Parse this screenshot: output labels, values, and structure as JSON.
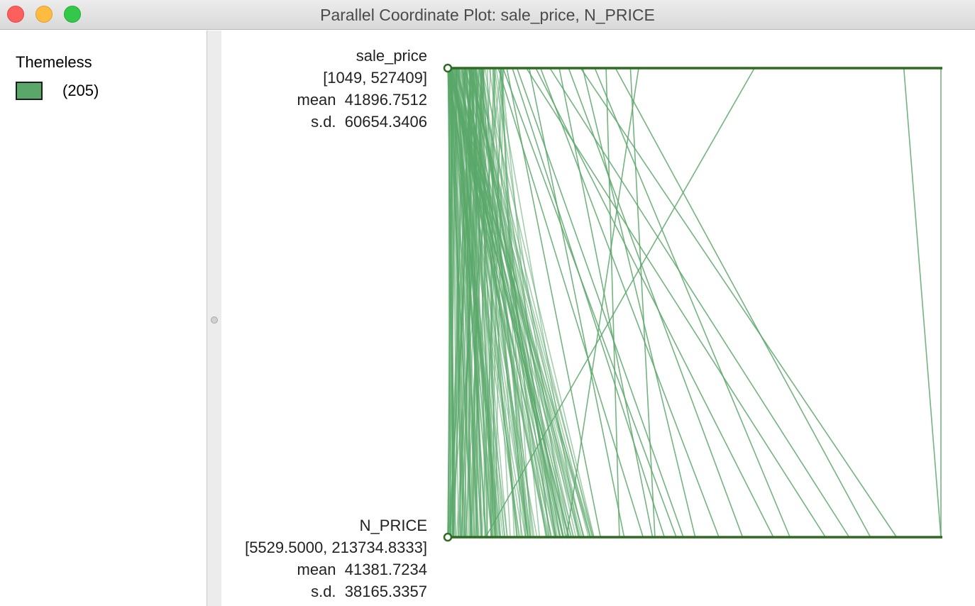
{
  "window": {
    "title": "Parallel Coordinate Plot: sale_price, N_PRICE"
  },
  "legend": {
    "title": "Themeless",
    "count": "(205)",
    "swatch_color": "#5aa76a"
  },
  "colors": {
    "line": "#5aa76a",
    "axis": "#2f6b22"
  },
  "axes": [
    {
      "name": "sale_price",
      "range": "[1049, 527409]",
      "mean": "mean  41896.7512",
      "sd": "s.d.  60654.3406"
    },
    {
      "name": "N_PRICE",
      "range": "[5529.5000, 213734.8333]",
      "mean": "mean  41381.7234",
      "sd": "s.d.  38165.3357"
    }
  ],
  "chart_data": {
    "type": "parallel_coordinates",
    "variables": [
      "sale_price",
      "N_PRICE"
    ],
    "observations": 205,
    "ranges": {
      "sale_price": [
        1049,
        527409
      ],
      "N_PRICE": [
        5529.5,
        213734.8333
      ]
    },
    "highlighted_lines": [
      {
        "sale_price": 527409,
        "N_PRICE": 213734.8333
      },
      {
        "sale_price": 487770,
        "N_PRICE": 213734.8333
      },
      {
        "sale_price": 328400,
        "N_PRICE": 21500
      },
      {
        "sale_price": 204800,
        "N_PRICE": 55700
      },
      {
        "sale_price": 180000,
        "N_PRICE": 184000
      },
      {
        "sale_price": 196000,
        "N_PRICE": 93000
      },
      {
        "sale_price": 158000,
        "N_PRICE": 150000
      },
      {
        "sale_price": 143000,
        "N_PRICE": 195000
      },
      {
        "sale_price": 170000,
        "N_PRICE": 78000
      },
      {
        "sale_price": 130000,
        "N_PRICE": 130000
      },
      {
        "sale_price": 110000,
        "N_PRICE": 175000
      },
      {
        "sale_price": 145000,
        "N_PRICE": 110000
      },
      {
        "sale_price": 95000,
        "N_PRICE": 143000
      },
      {
        "sale_price": 120000,
        "N_PRICE": 92000
      },
      {
        "sale_price": 85000,
        "N_PRICE": 165000
      },
      {
        "sale_price": 100000,
        "N_PRICE": 120000
      },
      {
        "sale_price": 75000,
        "N_PRICE": 105000
      },
      {
        "sale_price": 88000,
        "N_PRICE": 80000
      },
      {
        "sale_price": 70000,
        "N_PRICE": 97000
      },
      {
        "sale_price": 60000,
        "N_PRICE": 102000
      },
      {
        "sale_price": 64000,
        "N_PRICE": 70000
      },
      {
        "sale_price": 55000,
        "N_PRICE": 88000
      }
    ]
  }
}
